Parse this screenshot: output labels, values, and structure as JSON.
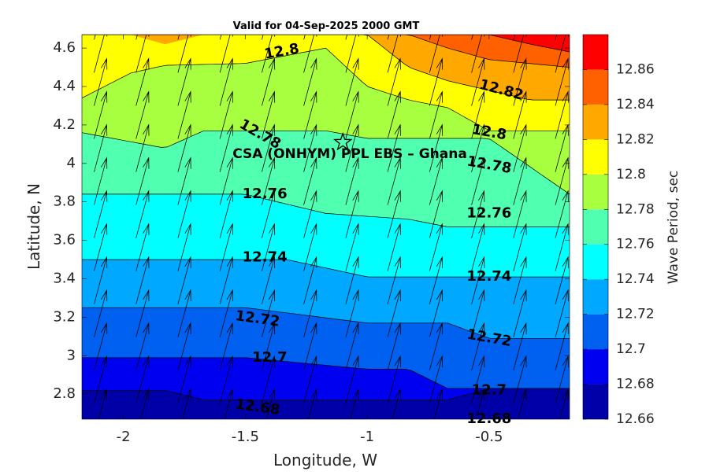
{
  "chart_data": {
    "type": "contour",
    "title": "Valid for 04-Sep-2025 2000 GMT",
    "xlabel": "Longitude, W",
    "ylabel": "Latitude, N",
    "xlim": [
      -2.17,
      -0.17
    ],
    "ylim": [
      2.67,
      4.67
    ],
    "xticks": [
      -2,
      -1.5,
      -1,
      -0.5
    ],
    "xtick_labels": [
      "-2",
      "-1.5",
      "-1",
      "-0.5"
    ],
    "yticks": [
      2.8,
      3,
      3.2,
      3.4,
      3.6,
      3.8,
      4,
      4.2,
      4.4,
      4.6
    ],
    "ytick_labels": [
      "2.8",
      "3",
      "3.2",
      "3.4",
      "3.6",
      "3.8",
      "4",
      "4.2",
      "4.4",
      "4.6"
    ],
    "colorbar": {
      "label": "Wave Period, sec",
      "min": 12.66,
      "max": 12.88,
      "ticks": [
        12.66,
        12.68,
        12.7,
        12.72,
        12.74,
        12.76,
        12.78,
        12.8,
        12.82,
        12.84,
        12.86
      ],
      "tick_labels": [
        "12.66",
        "12.68",
        "12.7",
        "12.72",
        "12.74",
        "12.76",
        "12.78",
        "12.8",
        "12.82",
        "12.84",
        "12.86"
      ],
      "colors": [
        "#0000a8",
        "#0000f0",
        "#0060f0",
        "#00a8ff",
        "#00ffff",
        "#50ffb0",
        "#a8ff40",
        "#ffff00",
        "#ffa800",
        "#ff6000",
        "#ff0000"
      ]
    },
    "contour_levels": [
      12.68,
      12.7,
      12.72,
      12.74,
      12.76,
      12.78,
      12.8,
      12.82,
      12.84,
      12.86
    ],
    "contour_labels": [
      {
        "text": "12.68",
        "lon": -1.45,
        "lat": 2.73,
        "angle": 8
      },
      {
        "text": "12.68",
        "lon": -0.5,
        "lat": 2.67,
        "angle": 0
      },
      {
        "text": "12.7",
        "lon": -1.4,
        "lat": 2.99,
        "angle": 0
      },
      {
        "text": "12.7",
        "lon": -0.5,
        "lat": 2.82,
        "angle": 0
      },
      {
        "text": "12.72",
        "lon": -1.45,
        "lat": 3.19,
        "angle": 8
      },
      {
        "text": "12.72",
        "lon": -0.5,
        "lat": 3.09,
        "angle": 10
      },
      {
        "text": "12.74",
        "lon": -1.42,
        "lat": 3.51,
        "angle": 0
      },
      {
        "text": "12.74",
        "lon": -0.5,
        "lat": 3.41,
        "angle": 0
      },
      {
        "text": "12.76",
        "lon": -1.42,
        "lat": 3.84,
        "angle": 0
      },
      {
        "text": "12.76",
        "lon": -0.5,
        "lat": 3.74,
        "angle": 0
      },
      {
        "text": "12.78",
        "lon": -1.44,
        "lat": 4.15,
        "angle": 30
      },
      {
        "text": "12.78",
        "lon": -0.5,
        "lat": 3.99,
        "angle": 10
      },
      {
        "text": "12.8",
        "lon": -1.35,
        "lat": 4.58,
        "angle": -10
      },
      {
        "text": "12.8",
        "lon": -0.5,
        "lat": 4.16,
        "angle": 10
      },
      {
        "text": "12.82",
        "lon": -0.45,
        "lat": 4.38,
        "angle": 15
      }
    ],
    "site": {
      "name": "CSA (ONHYM) PPL EBS  – Ghana",
      "lon": -1.1,
      "lat": 4.11
    },
    "vectors": {
      "label": "wave direction",
      "toward_deg": 15
    }
  }
}
